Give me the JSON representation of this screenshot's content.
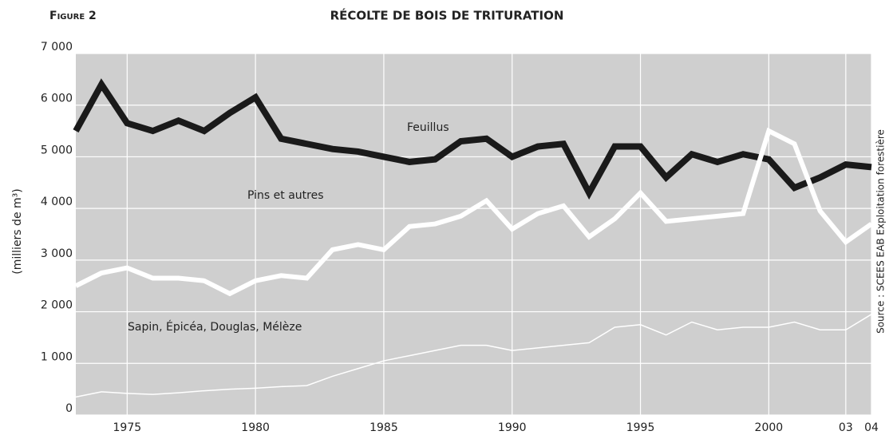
{
  "chart_data": {
    "type": "line",
    "figure_label": "Figure 2",
    "title": "RÉCOLTE DE BOIS DE TRITURATION",
    "y_label": "(milliers de m³)",
    "source": "Source : SCEES EAB Exploitation forestière",
    "x": [
      1973,
      1974,
      1975,
      1976,
      1977,
      1978,
      1979,
      1980,
      1981,
      1982,
      1983,
      1984,
      1985,
      1986,
      1987,
      1988,
      1989,
      1990,
      1991,
      1992,
      1993,
      1994,
      1995,
      1996,
      1997,
      1998,
      1999,
      2000,
      2001,
      2002,
      2003,
      2004
    ],
    "series": [
      {
        "name": "Feuillus",
        "color": "#1a1a1a",
        "values": [
          5500,
          6400,
          5650,
          5500,
          5700,
          5500,
          5850,
          6150,
          5350,
          5250,
          5150,
          5100,
          5000,
          4900,
          4950,
          5300,
          5350,
          5000,
          5200,
          5250,
          4300,
          5200,
          5200,
          4600,
          5050,
          4900,
          5050,
          4950,
          4400,
          4600,
          4850,
          4800
        ]
      },
      {
        "name": "Pins et autres",
        "color": "#ffffff",
        "values": [
          2500,
          2750,
          2850,
          2650,
          2650,
          2600,
          2350,
          2600,
          2700,
          2650,
          3200,
          3300,
          3200,
          3650,
          3700,
          3850,
          4150,
          3600,
          3900,
          4050,
          3450,
          3800,
          4300,
          3750,
          3800,
          3850,
          3900,
          5500,
          5250,
          3950,
          3350,
          3700
        ]
      },
      {
        "name": "Sapin, Épicéa, Douglas, Mélèze",
        "color": "#ffffff",
        "values": [
          350,
          450,
          420,
          400,
          430,
          470,
          500,
          520,
          550,
          570,
          750,
          900,
          1050,
          1150,
          1250,
          1350,
          1350,
          1250,
          1300,
          1350,
          1400,
          1700,
          1750,
          1550,
          1800,
          1650,
          1700,
          1700,
          1800,
          1650,
          1650,
          1950
        ]
      }
    ],
    "xlim": [
      1973,
      2004
    ],
    "xticks": [
      1975,
      1980,
      1985,
      1990,
      1995,
      2000,
      {
        "value": 2003,
        "label": "03"
      },
      {
        "value": 2004,
        "label": "04"
      }
    ],
    "ylim": [
      0,
      7000
    ],
    "yticks": [
      0,
      {
        "value": 1000,
        "label": "1 000"
      },
      {
        "value": 2000,
        "label": "2 000"
      },
      {
        "value": 3000,
        "label": "3 000"
      },
      {
        "value": 4000,
        "label": "4 000"
      },
      {
        "value": 5000,
        "label": "5 000"
      },
      {
        "value": 6000,
        "label": "6 000"
      },
      {
        "value": 7000,
        "label": "7 000"
      }
    ],
    "grid": true
  }
}
